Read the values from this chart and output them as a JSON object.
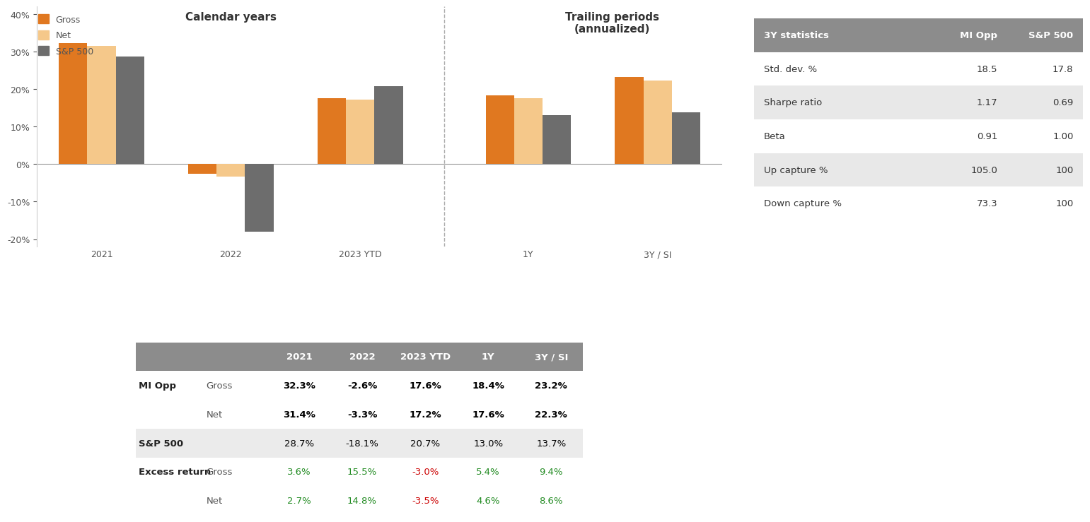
{
  "bar_groups": [
    {
      "label": "2021",
      "gross": 32.3,
      "net": 31.4,
      "sp500": 28.7
    },
    {
      "label": "2022",
      "gross": -2.6,
      "net": -3.3,
      "sp500": -18.1
    },
    {
      "label": "2023 YTD",
      "gross": 17.6,
      "net": 17.2,
      "sp500": 20.7
    },
    {
      "label": "1Y",
      "gross": 18.4,
      "net": 17.6,
      "sp500": 13.0
    },
    {
      "label": "3Y / SI",
      "gross": 23.2,
      "net": 22.3,
      "sp500": 13.7
    }
  ],
  "calendar_divider_after": 2,
  "color_gross": "#E07820",
  "color_net": "#F5C88A",
  "color_sp500": "#6D6D6D",
  "ylim": [
    -22,
    42
  ],
  "yticks": [
    -20,
    -10,
    0,
    10,
    20,
    30,
    40
  ],
  "legend_labels": [
    "Gross",
    "Net",
    "S&P 500"
  ],
  "chart_title_calendar": "Calendar years",
  "chart_title_trailing": "Trailing periods\n(annualized)",
  "stats_header": [
    "3Y statistics",
    "MI Opp",
    "S&P 500"
  ],
  "stats_rows": [
    [
      "Std. dev. %",
      "18.5",
      "17.8"
    ],
    [
      "Sharpe ratio",
      "1.17",
      "0.69"
    ],
    [
      "Beta",
      "0.91",
      "1.00"
    ],
    [
      "Up capture %",
      "105.0",
      "100"
    ],
    [
      "Down capture %",
      "73.3",
      "100"
    ]
  ],
  "stats_header_bg": "#8C8C8C",
  "stats_alt_bg": "#E8E8E8",
  "stats_white_bg": "#FFFFFF",
  "table_header_bg": "#8C8C8C",
  "table_header_color": "#FFFFFF",
  "table_rows": [
    {
      "row_label": "MI Opp",
      "sub_label": "Gross",
      "values": [
        "32.3%",
        "-2.6%",
        "17.6%",
        "18.4%",
        "23.2%"
      ],
      "bold": true,
      "color": "#000000"
    },
    {
      "row_label": "",
      "sub_label": "Net",
      "values": [
        "31.4%",
        "-3.3%",
        "17.2%",
        "17.6%",
        "22.3%"
      ],
      "bold": true,
      "color": "#000000"
    },
    {
      "row_label": "S&P 500",
      "sub_label": "",
      "values": [
        "28.7%",
        "-18.1%",
        "20.7%",
        "13.0%",
        "13.7%"
      ],
      "bold": false,
      "color": "#000000",
      "row_bg": "#EBEBEB"
    },
    {
      "row_label": "Excess return",
      "sub_label": "Gross",
      "values": [
        "3.6%",
        "15.5%",
        "-3.0%",
        "5.4%",
        "9.4%"
      ],
      "bold": false,
      "value_colors": [
        "#228B22",
        "#228B22",
        "#CC0000",
        "#228B22",
        "#228B22"
      ]
    },
    {
      "row_label": "",
      "sub_label": "Net",
      "values": [
        "2.7%",
        "14.8%",
        "-3.5%",
        "4.6%",
        "8.6%"
      ],
      "bold": false,
      "value_colors": [
        "#228B22",
        "#228B22",
        "#CC0000",
        "#228B22",
        "#228B22"
      ]
    }
  ],
  "table_columns": [
    "2021",
    "2022",
    "2023 YTD",
    "1Y",
    "3Y / SI"
  ],
  "background_color": "#FFFFFF"
}
